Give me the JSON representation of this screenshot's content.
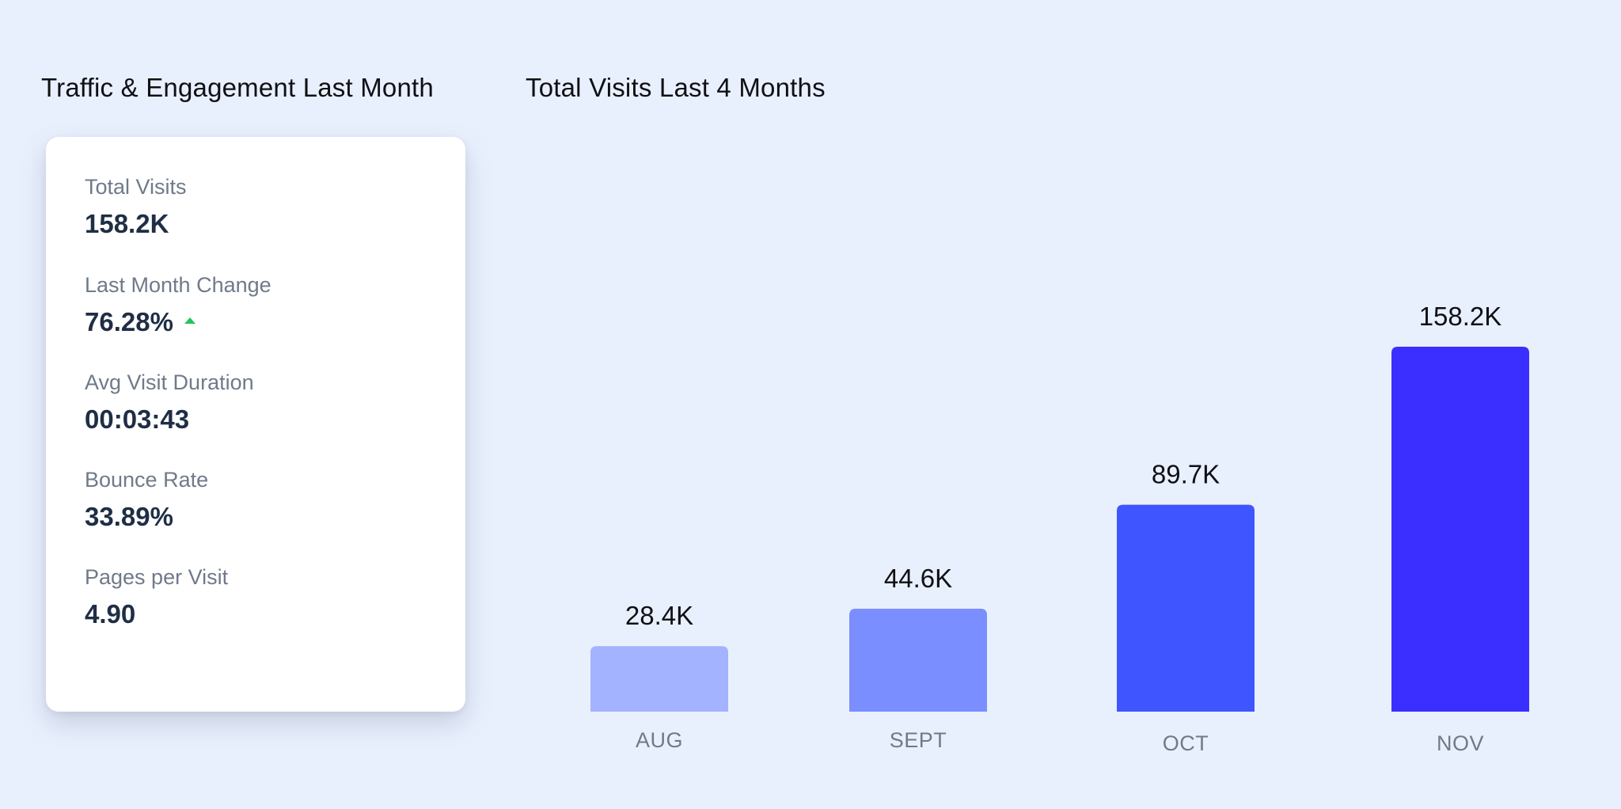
{
  "left_panel": {
    "title": "Traffic & Engagement Last Month",
    "stats": [
      {
        "label": "Total Visits",
        "value": "158.2K"
      },
      {
        "label": "Last Month Change",
        "value": "76.28%",
        "trend": "up",
        "trend_color": "#22c55e",
        "icon": "triangle-up-icon"
      },
      {
        "label": "Avg Visit Duration",
        "value": "00:03:43"
      },
      {
        "label": "Bounce Rate",
        "value": "33.89%"
      },
      {
        "label": "Pages per Visit",
        "value": "4.90"
      }
    ]
  },
  "chart_data": {
    "type": "bar",
    "title": "Total Visits Last 4 Months",
    "xlabel": "",
    "ylabel": "",
    "categories": [
      "AUG",
      "SEPT",
      "OCT",
      "NOV"
    ],
    "values": [
      28.4,
      44.6,
      89.7,
      158.2
    ],
    "value_labels": [
      "28.4K",
      "44.6K",
      "89.7K",
      "158.2K"
    ],
    "unit": "K",
    "ylim": [
      0,
      158.2
    ],
    "grid": false,
    "legend": "none",
    "colors": [
      "#a3b3ff",
      "#7a8eff",
      "#3f55ff",
      "#3a2fff"
    ]
  }
}
